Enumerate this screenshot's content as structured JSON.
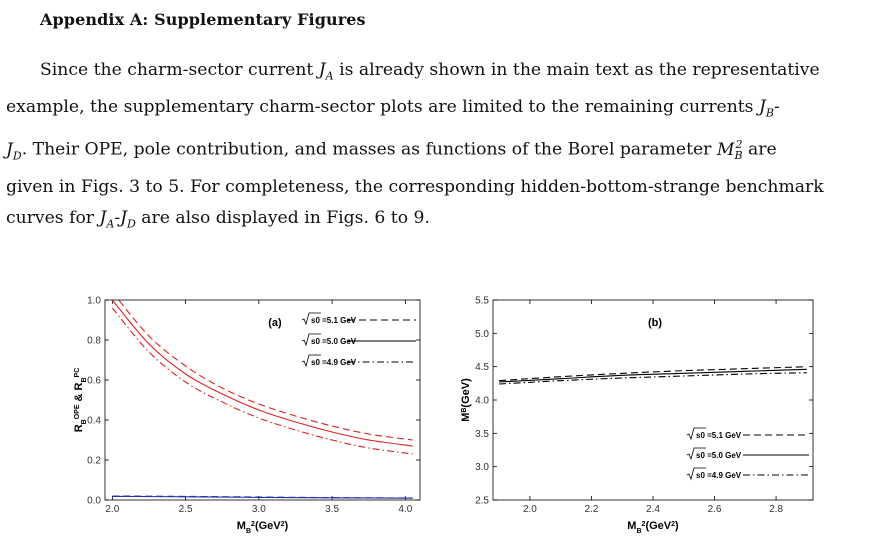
{
  "heading": "Appendix A: Supplementary Figures",
  "paragraph": {
    "l1_a": "Since the charm-sector current ",
    "l1_sym": "J",
    "l1_sub": "A",
    "l1_b": " is already shown in the main text as the representative",
    "l2_a": "example, the supplementary charm-sector plots are limited to the remaining currents ",
    "l2_sym": "J",
    "l2_sub": "B",
    "l2_b": "-",
    "l3_sym1": "J",
    "l3_sub1": "D",
    "l3_a": ". Their OPE, pole contribution, and masses as functions of the Borel parameter ",
    "l3_sym2": "M",
    "l3_sub2": "B",
    "l3_sup2": "2",
    "l3_b": " are",
    "l4": "given in Figs. 3 to 5. For completeness, the corresponding hidden-bottom-strange benchmark",
    "l5_a": "curves for ",
    "l5_sym1": "J",
    "l5_sub1": "A",
    "l5_dash": "-",
    "l5_sym2": "J",
    "l5_sub2": "D",
    "l5_b": " are also displayed in Figs. 6 to 9."
  },
  "chart_data": [
    {
      "type": "line",
      "panel_label": "(a)",
      "xlabel": "M_B^2(GeV^2)",
      "ylabel": "R_B^OPE & R_B^PC",
      "xlim": [
        1.95,
        4.1
      ],
      "ylim": [
        0.0,
        1.0
      ],
      "xticks": [
        "2.0",
        "2.5",
        "3.0",
        "3.5",
        "4.0"
      ],
      "yticks": [
        "0.0",
        "0.2",
        "0.4",
        "0.6",
        "0.8",
        "1.0"
      ],
      "legend": [
        "√s0 =5.1 GeV",
        "√s0 =5.0 GeV",
        "√s0 =4.9 GeV"
      ],
      "legend_position": "top-right",
      "series": [
        {
          "name": "√s0 =5.1 GeV",
          "color": "#dd2222",
          "dash": "dashed",
          "x": [
            2.0,
            2.25,
            2.5,
            2.75,
            3.0,
            3.25,
            3.5,
            3.75,
            4.05
          ],
          "y": [
            1.04,
            0.82,
            0.67,
            0.56,
            0.48,
            0.42,
            0.37,
            0.33,
            0.3
          ]
        },
        {
          "name": "√s0 =5.0 GeV",
          "color": "#dd2222",
          "dash": "solid",
          "x": [
            2.0,
            2.25,
            2.5,
            2.75,
            3.0,
            3.25,
            3.5,
            3.75,
            4.05
          ],
          "y": [
            1.0,
            0.78,
            0.63,
            0.53,
            0.45,
            0.39,
            0.34,
            0.3,
            0.27
          ]
        },
        {
          "name": "√s0 =4.9 GeV",
          "color": "#dd2222",
          "dash": "dashdot",
          "x": [
            2.0,
            2.25,
            2.5,
            2.75,
            3.0,
            3.25,
            3.5,
            3.75,
            4.05
          ],
          "y": [
            0.96,
            0.74,
            0.59,
            0.49,
            0.41,
            0.35,
            0.3,
            0.26,
            0.23
          ]
        },
        {
          "name": "",
          "color": "#2233aa",
          "dash": "solid",
          "x": [
            2.0,
            2.5,
            3.0,
            3.5,
            4.05
          ],
          "y": [
            0.018,
            0.016,
            0.013,
            0.011,
            0.009
          ]
        },
        {
          "name": "",
          "color": "#2233aa",
          "dash": "dashed",
          "x": [
            2.0,
            2.5,
            3.0,
            3.5,
            4.05
          ],
          "y": [
            0.02,
            0.018,
            0.015,
            0.012,
            0.01
          ]
        }
      ]
    },
    {
      "type": "line",
      "panel_label": "(b)",
      "xlabel": "M_B^2(GeV^2)",
      "ylabel": "M^B(GeV)",
      "xlim": [
        1.88,
        2.92
      ],
      "ylim": [
        2.5,
        5.5
      ],
      "xticks": [
        "2.0",
        "2.2",
        "2.4",
        "2.6",
        "2.8"
      ],
      "yticks": [
        "2.5",
        "3.0",
        "3.5",
        "4.0",
        "4.5",
        "5.0",
        "5.5"
      ],
      "legend": [
        "√s0 =5.1 GeV",
        "√s0 =5.0 GeV",
        "√s0 =4.9 GeV"
      ],
      "legend_position": "bottom-right",
      "series": [
        {
          "name": "√s0 =5.1 GeV",
          "color": "#000000",
          "dash": "dashed",
          "x": [
            1.9,
            2.1,
            2.3,
            2.5,
            2.7,
            2.9
          ],
          "y": [
            4.29,
            4.35,
            4.4,
            4.44,
            4.47,
            4.5
          ]
        },
        {
          "name": "√s0 =5.0 GeV",
          "color": "#000000",
          "dash": "solid",
          "x": [
            1.9,
            2.1,
            2.3,
            2.5,
            2.7,
            2.9
          ],
          "y": [
            4.27,
            4.32,
            4.37,
            4.4,
            4.43,
            4.46
          ]
        },
        {
          "name": "√s0 =4.9 GeV",
          "color": "#000000",
          "dash": "dashdot",
          "x": [
            1.9,
            2.1,
            2.3,
            2.5,
            2.7,
            2.9
          ],
          "y": [
            4.24,
            4.29,
            4.33,
            4.36,
            4.39,
            4.41
          ]
        }
      ]
    }
  ]
}
